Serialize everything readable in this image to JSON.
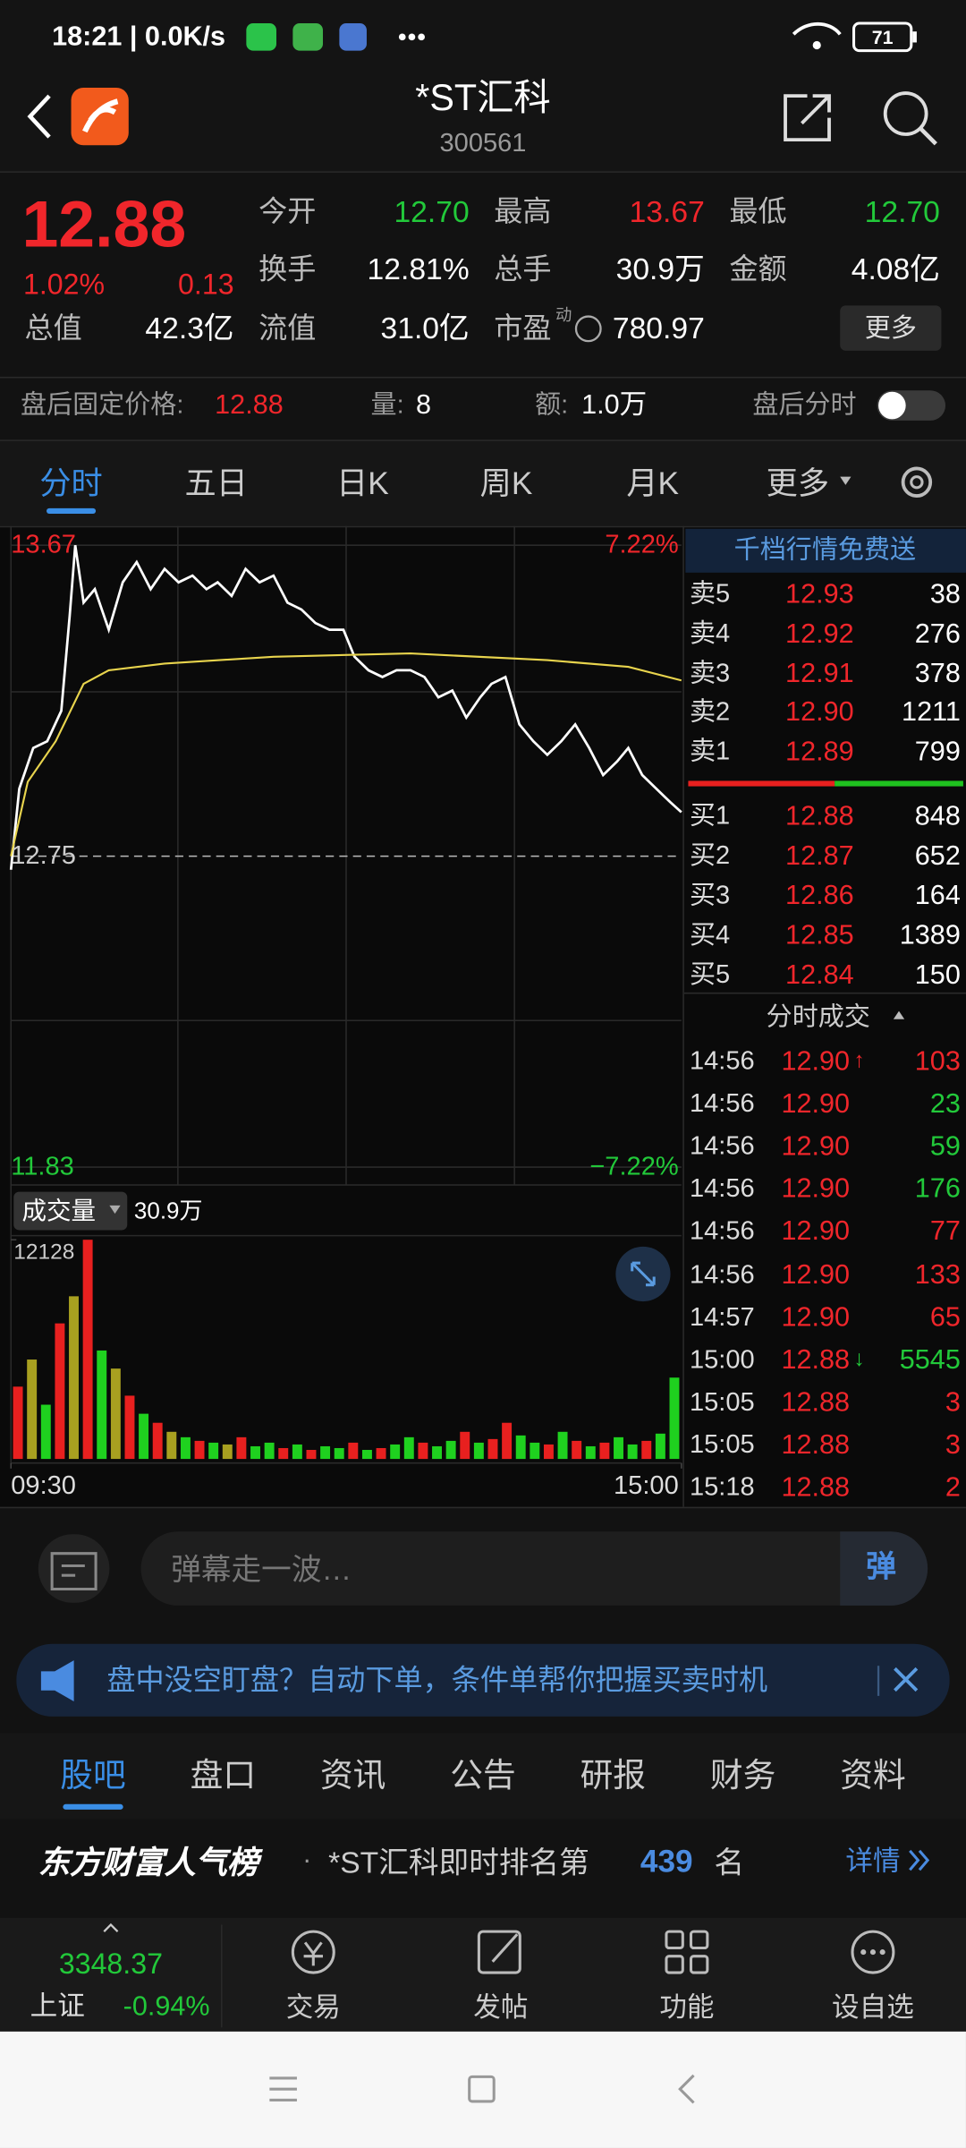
{
  "status_bar": {
    "text": "18:21 | 0.0K/s",
    "battery": "71"
  },
  "header": {
    "title": "*ST汇科",
    "code": "300561"
  },
  "quote": {
    "price": "12.88",
    "change_pct": "1.02%",
    "change": "0.13",
    "stats": [
      {
        "label": "今开",
        "value": "12.70",
        "color": "#22c93a"
      },
      {
        "label": "最高",
        "value": "13.67",
        "color": "#f0262b"
      },
      {
        "label": "最低",
        "value": "12.70",
        "color": "#22c93a"
      },
      {
        "label": "换手",
        "value": "12.81%",
        "color": "#ffffff"
      },
      {
        "label": "总手",
        "value": "30.9万",
        "color": "#ffffff"
      },
      {
        "label": "金额",
        "value": "4.08亿",
        "color": "#ffffff"
      },
      {
        "label": "总值",
        "value": "42.3亿",
        "color": "#ffffff"
      },
      {
        "label": "流值",
        "value": "31.0亿",
        "color": "#ffffff"
      },
      {
        "label": "市盈",
        "value": "780.97",
        "color": "#ffffff"
      }
    ],
    "pe_note": "动",
    "more": "更多"
  },
  "after_hours": {
    "label": "盘后固定价格:",
    "price": "12.88",
    "volume_label": "量:",
    "volume": "8",
    "amount_label": "额:",
    "amount": "1.0万",
    "toggle_label": "盘后分时"
  },
  "tabs": {
    "items": [
      "分时",
      "五日",
      "日K",
      "周K",
      "月K",
      "更多"
    ],
    "active": 0
  },
  "intraday": {
    "type": "line",
    "xlim": [
      0,
      240
    ],
    "xticks": [
      {
        "value": 0,
        "label": "09:30"
      },
      {
        "value": 240,
        "label": "15:00"
      }
    ],
    "ylim": [
      11.83,
      13.67
    ],
    "yticks": [
      11.83,
      12.75,
      13.67
    ],
    "y2lim": [
      -7.22,
      7.22
    ],
    "y2ticks": [
      {
        "value": -7.22,
        "label": "−7.22%"
      },
      {
        "value": 7.22,
        "label": "7.22%"
      }
    ],
    "series": [
      {
        "color": "#ffffff",
        "x": [
          0,
          3,
          8,
          13,
          18,
          21,
          23,
          26,
          30,
          35,
          40,
          45,
          50,
          55,
          60,
          65,
          70,
          74,
          79,
          84,
          89,
          94,
          99,
          104,
          109,
          114,
          119,
          123,
          128,
          133,
          138,
          143,
          148,
          153,
          158,
          163,
          168,
          172,
          177,
          182,
          187,
          192,
          197,
          202,
          207,
          212,
          217,
          221,
          226,
          231,
          236,
          240
        ],
        "values": [
          12.71,
          12.95,
          13.07,
          13.09,
          13.18,
          13.46,
          13.67,
          13.5,
          13.54,
          13.42,
          13.56,
          13.62,
          13.54,
          13.6,
          13.56,
          13.58,
          13.54,
          13.56,
          13.52,
          13.6,
          13.56,
          13.58,
          13.5,
          13.48,
          13.44,
          13.42,
          13.42,
          13.34,
          13.3,
          13.28,
          13.3,
          13.3,
          13.28,
          13.22,
          13.24,
          13.16,
          13.22,
          13.26,
          13.28,
          13.14,
          13.09,
          13.05,
          13.09,
          13.14,
          13.07,
          12.99,
          13.03,
          13.07,
          12.99,
          12.95,
          12.91,
          12.88
        ]
      },
      {
        "color": "#e8d44d",
        "x": [
          0,
          6,
          16,
          26,
          35,
          55,
          94,
          143,
          192,
          221,
          240
        ],
        "values": [
          12.75,
          12.97,
          13.09,
          13.26,
          13.3,
          13.32,
          13.34,
          13.35,
          13.33,
          13.31,
          13.27
        ]
      }
    ]
  },
  "volume": {
    "type": "bar",
    "label": "成交量",
    "total": "30.9万",
    "ylim": [
      0,
      12128
    ],
    "yticks": [
      12128
    ],
    "values": [
      4000,
      5500,
      3000,
      7500,
      9000,
      12128,
      6000,
      5000,
      3500,
      2500,
      2000,
      1500,
      1200,
      1000,
      900,
      800,
      1200,
      700,
      900,
      600,
      800,
      500,
      700,
      600,
      900,
      500,
      600,
      800,
      1200,
      900,
      700,
      1000,
      1500,
      900,
      1100,
      2000,
      1300,
      900,
      800,
      1500,
      1000,
      700,
      900,
      1200,
      800,
      1000,
      1400,
      4500
    ],
    "colors": [
      "#e8201f",
      "#a8a020",
      "#1fd11f",
      "#e8201f",
      "#a8a020",
      "#e8201f",
      "#1fd11f",
      "#a8a020",
      "#e8201f",
      "#1fd11f",
      "#e8201f",
      "#a8a020",
      "#1fd11f",
      "#e8201f",
      "#1fd11f",
      "#a8a020",
      "#e8201f",
      "#1fd11f",
      "#1fd11f",
      "#e8201f",
      "#1fd11f",
      "#e8201f",
      "#1fd11f",
      "#1fd11f",
      "#e8201f",
      "#1fd11f",
      "#e8201f",
      "#1fd11f",
      "#1fd11f",
      "#e8201f",
      "#1fd11f",
      "#1fd11f",
      "#e8201f",
      "#1fd11f",
      "#e8201f",
      "#e8201f",
      "#1fd11f",
      "#1fd11f",
      "#e8201f",
      "#1fd11f",
      "#e8201f",
      "#1fd11f",
      "#e8201f",
      "#1fd11f",
      "#1fd11f",
      "#e8201f",
      "#1fd11f",
      "#1fd11f"
    ]
  },
  "order_book": {
    "title": "千档行情免费送",
    "asks": [
      {
        "label": "卖5",
        "price": "12.93",
        "volume": "38"
      },
      {
        "label": "卖4",
        "price": "12.92",
        "volume": "276"
      },
      {
        "label": "卖3",
        "price": "12.91",
        "volume": "378"
      },
      {
        "label": "卖2",
        "price": "12.90",
        "volume": "1211"
      },
      {
        "label": "卖1",
        "price": "12.89",
        "volume": "799"
      }
    ],
    "bids": [
      {
        "label": "买1",
        "price": "12.88",
        "volume": "848"
      },
      {
        "label": "买2",
        "price": "12.87",
        "volume": "652"
      },
      {
        "label": "买3",
        "price": "12.86",
        "volume": "164"
      },
      {
        "label": "买4",
        "price": "12.85",
        "volume": "1389"
      },
      {
        "label": "买5",
        "price": "12.84",
        "volume": "150"
      }
    ]
  },
  "trades": {
    "title": "分时成交",
    "rows": [
      {
        "time": "14:56",
        "price": "12.90",
        "flag": "↑",
        "volume": "103",
        "color": "#f0262b"
      },
      {
        "time": "14:56",
        "price": "12.90",
        "volume": "23",
        "color": "#22c93a"
      },
      {
        "time": "14:56",
        "price": "12.90",
        "volume": "59",
        "color": "#22c93a"
      },
      {
        "time": "14:56",
        "price": "12.90",
        "volume": "176",
        "color": "#22c93a"
      },
      {
        "time": "14:56",
        "price": "12.90",
        "volume": "77",
        "color": "#f0262b"
      },
      {
        "time": "14:56",
        "price": "12.90",
        "volume": "133",
        "color": "#f0262b"
      },
      {
        "time": "14:57",
        "price": "12.90",
        "volume": "65",
        "color": "#f0262b"
      },
      {
        "time": "15:00",
        "price": "12.88",
        "flag": "↓",
        "volume": "5545",
        "color": "#22c93a"
      },
      {
        "time": "15:05",
        "price": "12.88",
        "volume": "3",
        "color": "#f0262b"
      },
      {
        "time": "15:05",
        "price": "12.88",
        "volume": "3",
        "color": "#f0262b"
      },
      {
        "time": "15:18",
        "price": "12.88",
        "volume": "2",
        "color": "#f0262b"
      }
    ]
  },
  "comment": {
    "placeholder": "弹幕走一波…",
    "button": "弹"
  },
  "banner": {
    "text": "盘中没空盯盘？自动下单，条件单帮你把握买卖时机"
  },
  "section_tabs": {
    "items": [
      "股吧",
      "盘口",
      "资讯",
      "公告",
      "研报",
      "财务",
      "资料"
    ],
    "active": 0
  },
  "rank": {
    "brand": "东方财富人气榜",
    "dot": "·",
    "text": "*ST汇科即时排名第",
    "rank": "439",
    "suffix": "名",
    "link": "详情"
  },
  "bottom_nav": {
    "index_value": "3348.37",
    "index_name": "上证",
    "index_change": "-0.94%",
    "items": [
      "交易",
      "发帖",
      "功能",
      "设自选"
    ]
  }
}
